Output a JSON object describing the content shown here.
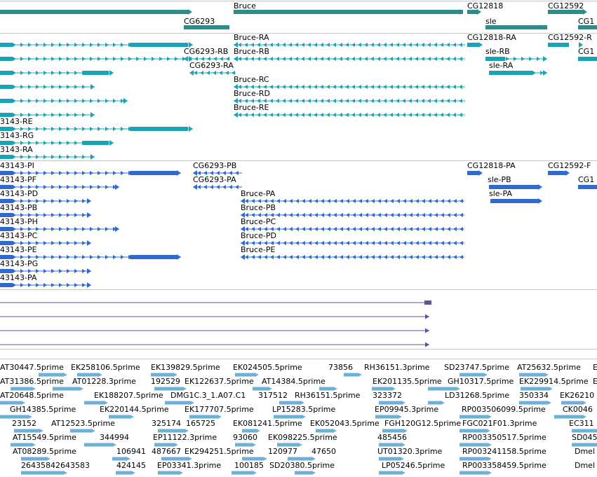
{
  "colors": {
    "gene": "#2e8b8b",
    "mrna_teal": "#1aa3b8",
    "mrna_blue": "#2e6bd0",
    "purple": "#6a4c9c",
    "est": "#6fb0d8",
    "divider": "#c8c8c8"
  },
  "genes": [
    {
      "id": "gene-bruce",
      "label": "Bruce"
    },
    {
      "id": "gene-cg12818",
      "label": "CG12818"
    },
    {
      "id": "gene-cg12592",
      "label": "CG12592"
    },
    {
      "id": "gene-cg6293",
      "label": "CG6293"
    },
    {
      "id": "gene-sle",
      "label": "sle"
    },
    {
      "id": "gene-cg1-cut",
      "label": "CG1"
    }
  ],
  "transcripts_a": [
    {
      "id": "tx-bruce-ra",
      "label": "Bruce-RA"
    },
    {
      "id": "tx-cg12818-ra",
      "label": "CG12818-RA"
    },
    {
      "id": "tx-cg12592-r",
      "label": "CG12592-R"
    },
    {
      "id": "tx-cg6293-rb",
      "label": "CG6293-RB"
    },
    {
      "id": "tx-bruce-rb",
      "label": "Bruce-RB"
    },
    {
      "id": "tx-sle-rb",
      "label": "sle-RB"
    },
    {
      "id": "tx-cg1-cut",
      "label": "CG1"
    },
    {
      "id": "tx-cg6293-ra",
      "label": "CG6293-RA"
    },
    {
      "id": "tx-sle-ra",
      "label": "sle-RA"
    },
    {
      "id": "tx-bruce-rc",
      "label": "Bruce-RC"
    },
    {
      "id": "tx-bruce-rd",
      "label": "Bruce-RD"
    },
    {
      "id": "tx-bruce-re",
      "label": "Bruce-RE"
    },
    {
      "id": "tx-3143-re",
      "label": "3143-RE"
    },
    {
      "id": "tx-3143-rg",
      "label": "3143-RG"
    },
    {
      "id": "tx-3143-ra",
      "label": "3143-RA"
    }
  ],
  "transcripts_b": [
    {
      "id": "tx-43143-pi",
      "label": "43143-PI"
    },
    {
      "id": "tx-cg6293-pb",
      "label": "CG6293-PB"
    },
    {
      "id": "tx-cg12818-pa",
      "label": "CG12818-PA"
    },
    {
      "id": "tx-cg12592-f",
      "label": "CG12592-F"
    },
    {
      "id": "tx-43143-pf",
      "label": "43143-PF"
    },
    {
      "id": "tx-cg6293-pa",
      "label": "CG6293-PA"
    },
    {
      "id": "tx-sle-pb",
      "label": "sle-PB"
    },
    {
      "id": "tx-cg1-cut2",
      "label": "CG1"
    },
    {
      "id": "tx-43143-pd",
      "label": "43143-PD"
    },
    {
      "id": "tx-bruce-pa",
      "label": "Bruce-PA"
    },
    {
      "id": "tx-sle-pa",
      "label": "sle-PA"
    },
    {
      "id": "tx-43143-pb",
      "label": "43143-PB"
    },
    {
      "id": "tx-bruce-pb",
      "label": "Bruce-PB"
    },
    {
      "id": "tx-43143-ph",
      "label": "43143-PH"
    },
    {
      "id": "tx-bruce-pc",
      "label": "Bruce-PC"
    },
    {
      "id": "tx-43143-pc",
      "label": "43143-PC"
    },
    {
      "id": "tx-bruce-pd",
      "label": "Bruce-PD"
    },
    {
      "id": "tx-43143-pe",
      "label": "43143-PE"
    },
    {
      "id": "tx-bruce-pe",
      "label": "Bruce-PE"
    },
    {
      "id": "tx-43143-pg",
      "label": "43143-PG"
    },
    {
      "id": "tx-43143-pa",
      "label": "43143-PA"
    }
  ],
  "est_labels": [
    "AT30447.5prime",
    "EK258106.5prime",
    "EK139829.5prime",
    "EK024505.5prime",
    "73856",
    "RH36151.3prime",
    "SD23747.5prime",
    "AT25632.5prime",
    "E",
    "AT31386.5prime",
    "AT01228.3prime",
    "192529",
    "EK122637.5prime",
    "AT14384.5prime",
    "EK201135.5prime",
    "GH10317.5prime",
    "EK229914.5prime",
    "EI",
    "AT20648.5prime",
    "EK188207.5prime",
    "DMG1C.3_1.A07.C1",
    "317512",
    "RH36151.5prime",
    "323372",
    "LD31268.5prime",
    "350334",
    "EK26210",
    "GH14385.5prime",
    "EK220144.5prime",
    "EK177707.5prime",
    "LP15283.5prime",
    "EP09945.3prime",
    "RP003506099.5prime",
    "CK0046",
    "23152",
    "AT12523.5prime",
    "325174",
    "165725",
    "EK081241.5prime",
    "EK052043.5prime",
    "FGH120G12.5prime",
    "FGC021F01.3prime",
    "EC311",
    "AT15549.5prime",
    "344994",
    "EP11122.3prime",
    "93060",
    "EK098225.5prime",
    "485456",
    "RP003350517.5prime",
    "SD045",
    "AT08289.5prime",
    "106941",
    "487667",
    "EK294251.5prime",
    "120977",
    "47650",
    "UT01320.3prime",
    "RP003241158.5prime",
    "Dmel",
    "26435842643583",
    "424145",
    "EP03341.3prime",
    "100185",
    "SD20380.5prime",
    "LP05246.5prime",
    "RP003358459.5prime",
    "Dmel"
  ]
}
